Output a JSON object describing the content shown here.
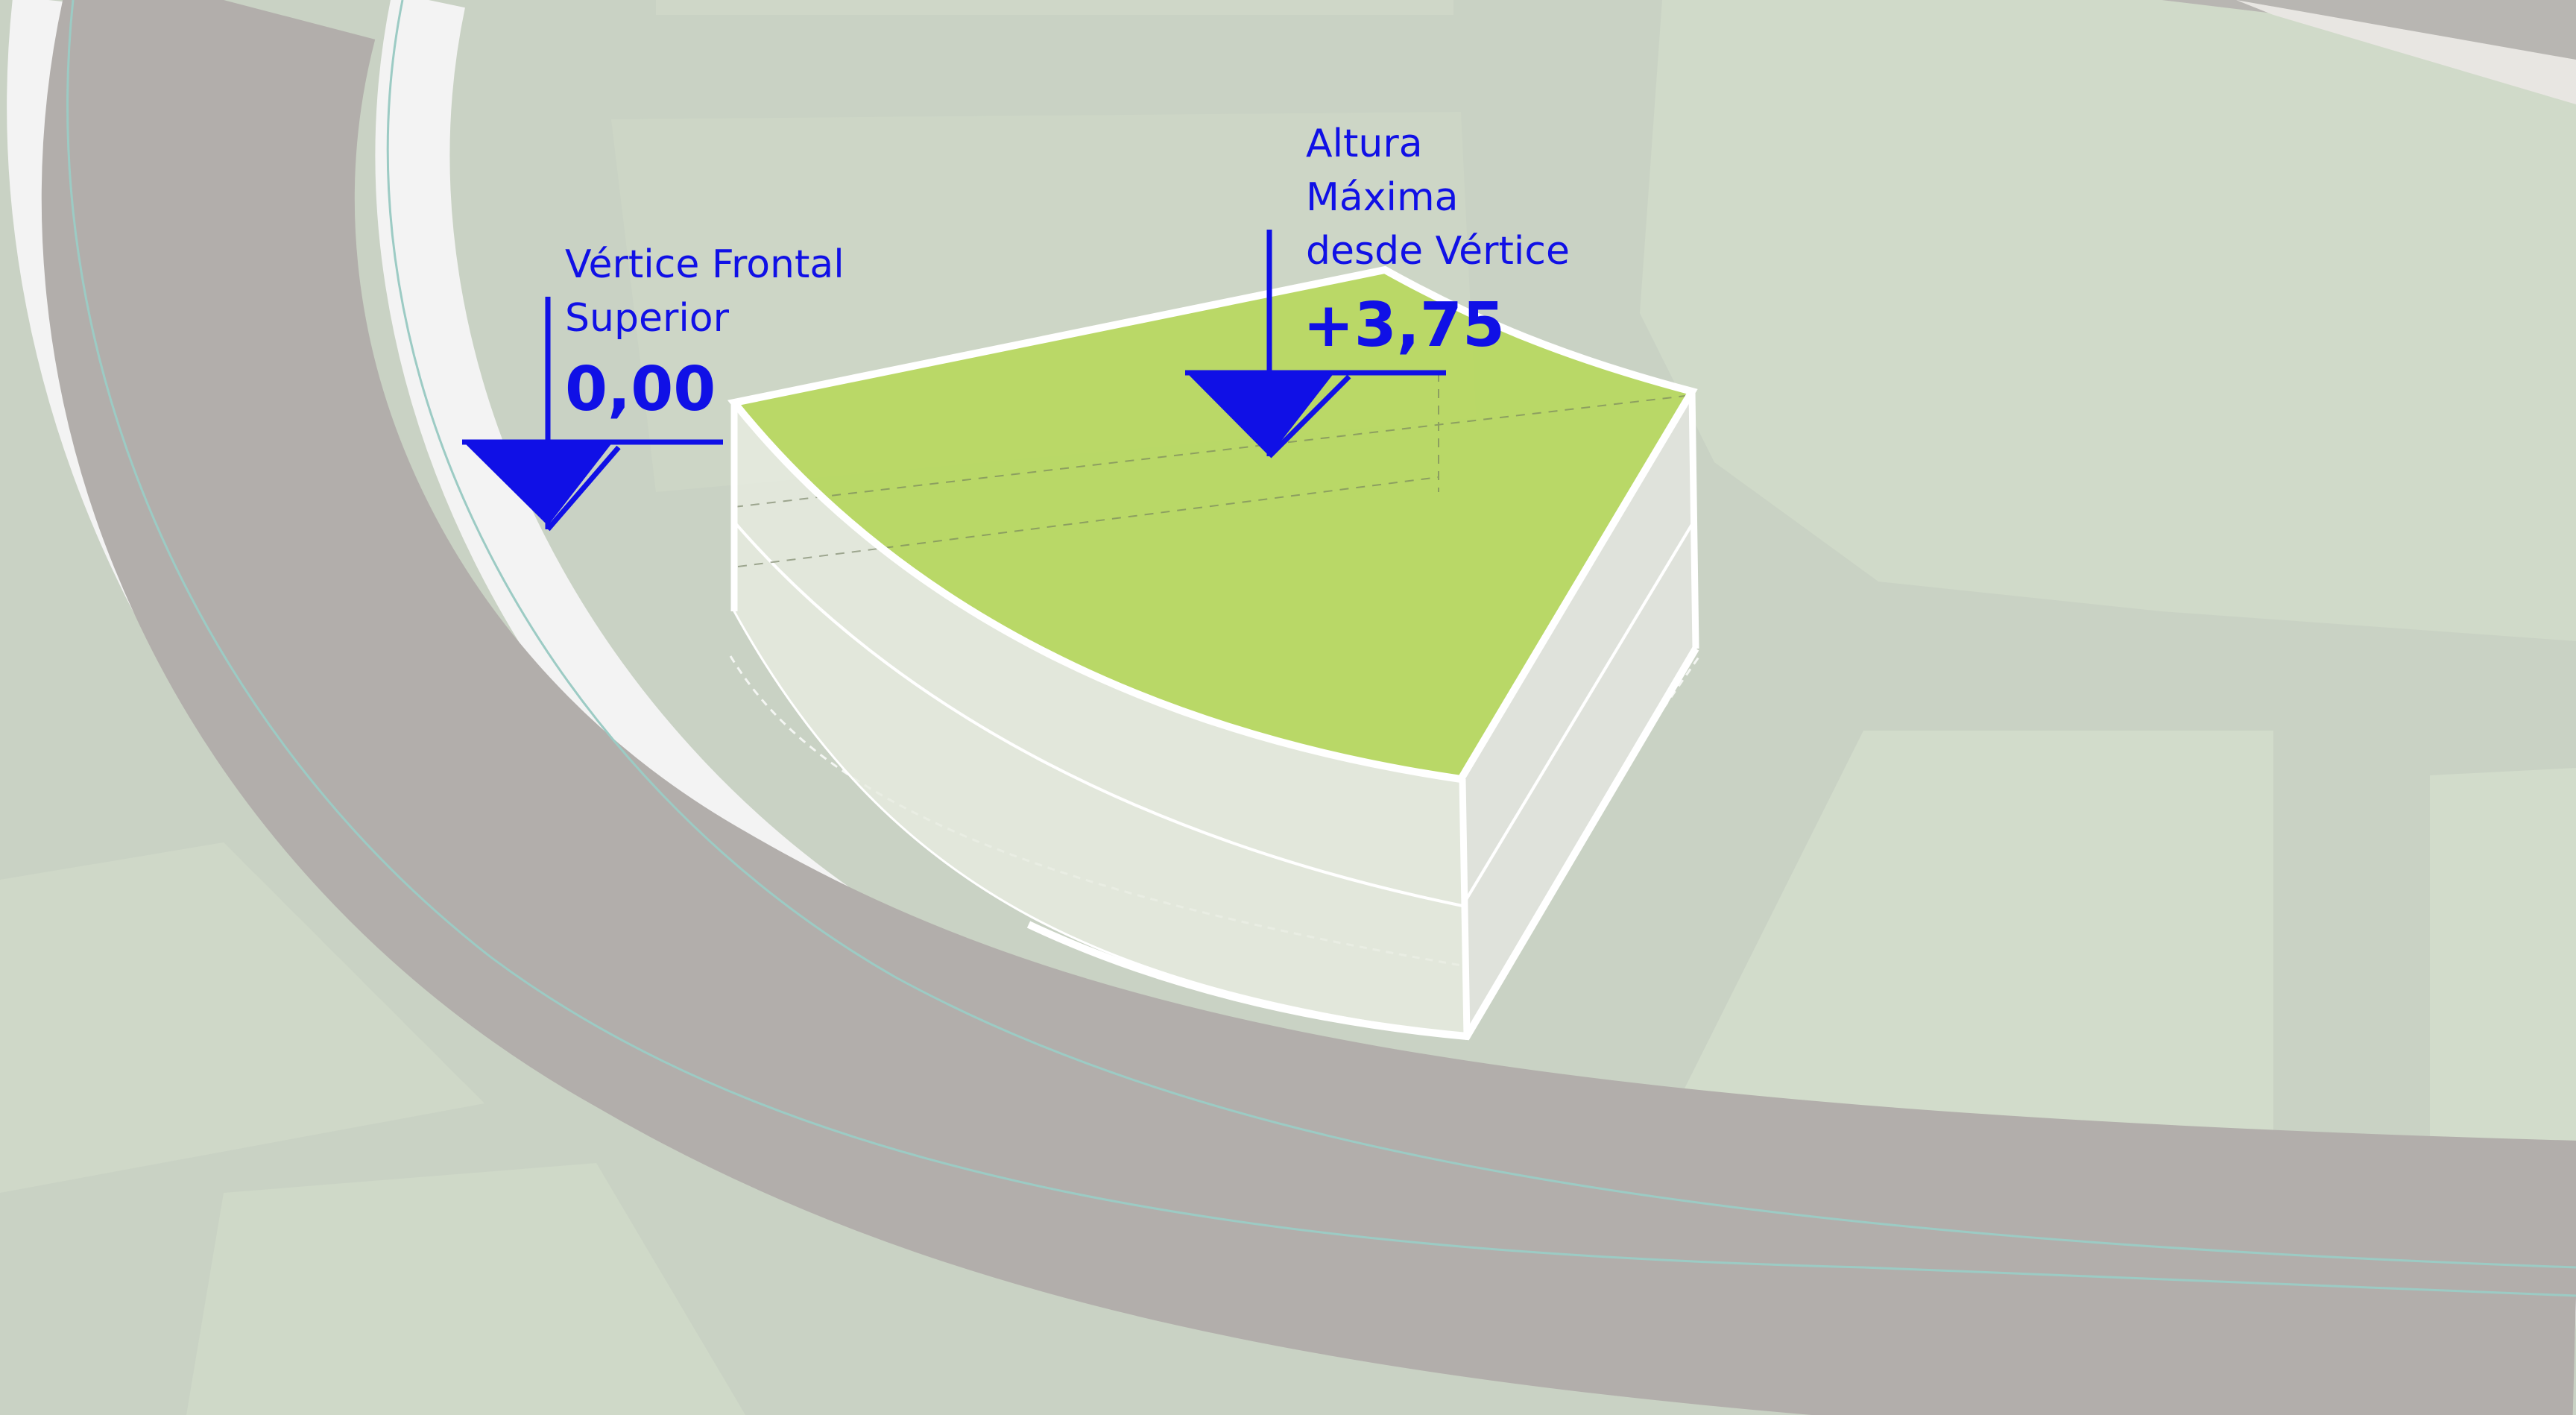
{
  "colors": {
    "annotation": "#1010e6",
    "volume_top": "#b8d860",
    "ground": "#c9d2c4",
    "road": "#b2aeab",
    "sidewalk": "#f2f2f2"
  },
  "markers": {
    "front": {
      "line1": "Vértice Frontal",
      "line2": "Superior",
      "value": "0,00"
    },
    "max": {
      "line1": "Altura",
      "line2": "Máxima",
      "line3": "desde Vértice",
      "value": "+3,75"
    }
  }
}
